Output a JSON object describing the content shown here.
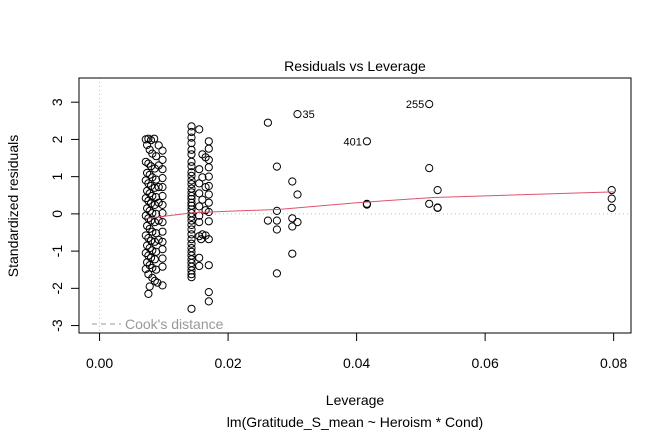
{
  "chart_data": {
    "type": "scatter",
    "title": "Residuals vs Leverage",
    "xlabel": "Leverage",
    "sublabel": "lm(Gratitude_S_mean ~ Heroism * Cond)",
    "ylabel": "Standardized residuals",
    "xlim": [
      -0.0032,
      0.0827
    ],
    "ylim": [
      -3.2,
      3.65
    ],
    "x_ticks": [
      0.0,
      0.02,
      0.04,
      0.06,
      0.08
    ],
    "x_tick_labels": [
      "0.00",
      "0.02",
      "0.04",
      "0.06",
      "0.08"
    ],
    "y_ticks": [
      -3,
      -2,
      -1,
      0,
      1,
      2,
      3
    ],
    "y_tick_labels": [
      "-3",
      "-2",
      "-1",
      "0",
      "1",
      "2",
      "3"
    ],
    "legend": {
      "label": "Cook's distance",
      "placement": "bottom-left"
    },
    "colors": {
      "points": "#000000",
      "smooth": "#df536b",
      "reference": "#bebebe",
      "legend_text": "#999999"
    },
    "points": [
      {
        "x": 0.0072,
        "y": 2.0
      },
      {
        "x": 0.0076,
        "y": 2.02
      },
      {
        "x": 0.008,
        "y": 1.98
      },
      {
        "x": 0.0085,
        "y": 2.02
      },
      {
        "x": 0.0092,
        "y": 1.84
      },
      {
        "x": 0.0098,
        "y": 1.7
      },
      {
        "x": 0.0074,
        "y": 1.85
      },
      {
        "x": 0.0078,
        "y": 1.72
      },
      {
        "x": 0.0082,
        "y": 1.62
      },
      {
        "x": 0.0088,
        "y": 1.55
      },
      {
        "x": 0.0098,
        "y": 1.45
      },
      {
        "x": 0.0072,
        "y": 1.4
      },
      {
        "x": 0.0076,
        "y": 1.35
      },
      {
        "x": 0.008,
        "y": 1.28
      },
      {
        "x": 0.0086,
        "y": 1.22
      },
      {
        "x": 0.0092,
        "y": 1.3
      },
      {
        "x": 0.0098,
        "y": 1.2
      },
      {
        "x": 0.0074,
        "y": 1.1
      },
      {
        "x": 0.0078,
        "y": 1.05
      },
      {
        "x": 0.0082,
        "y": 0.98
      },
      {
        "x": 0.0088,
        "y": 0.92
      },
      {
        "x": 0.0098,
        "y": 0.96
      },
      {
        "x": 0.0072,
        "y": 0.9
      },
      {
        "x": 0.0076,
        "y": 0.82
      },
      {
        "x": 0.008,
        "y": 0.75
      },
      {
        "x": 0.0086,
        "y": 0.7
      },
      {
        "x": 0.0092,
        "y": 0.72
      },
      {
        "x": 0.0098,
        "y": 0.72
      },
      {
        "x": 0.0074,
        "y": 0.62
      },
      {
        "x": 0.0078,
        "y": 0.55
      },
      {
        "x": 0.0082,
        "y": 0.48
      },
      {
        "x": 0.0088,
        "y": 0.45
      },
      {
        "x": 0.0098,
        "y": 0.48
      },
      {
        "x": 0.0072,
        "y": 0.42
      },
      {
        "x": 0.0076,
        "y": 0.35
      },
      {
        "x": 0.008,
        "y": 0.28
      },
      {
        "x": 0.0086,
        "y": 0.24
      },
      {
        "x": 0.0092,
        "y": 0.3
      },
      {
        "x": 0.0098,
        "y": 0.24
      },
      {
        "x": 0.0074,
        "y": 0.15
      },
      {
        "x": 0.0078,
        "y": 0.08
      },
      {
        "x": 0.0082,
        "y": 0.02
      },
      {
        "x": 0.0088,
        "y": 0.0
      },
      {
        "x": 0.0098,
        "y": 0.02
      },
      {
        "x": 0.0072,
        "y": -0.05
      },
      {
        "x": 0.0076,
        "y": -0.12
      },
      {
        "x": 0.008,
        "y": -0.18
      },
      {
        "x": 0.0086,
        "y": -0.22
      },
      {
        "x": 0.0092,
        "y": -0.18
      },
      {
        "x": 0.0098,
        "y": -0.22
      },
      {
        "x": 0.0074,
        "y": -0.32
      },
      {
        "x": 0.0078,
        "y": -0.4
      },
      {
        "x": 0.0082,
        "y": -0.48
      },
      {
        "x": 0.0088,
        "y": -0.52
      },
      {
        "x": 0.0098,
        "y": -0.48
      },
      {
        "x": 0.0072,
        "y": -0.58
      },
      {
        "x": 0.0076,
        "y": -0.65
      },
      {
        "x": 0.008,
        "y": -0.72
      },
      {
        "x": 0.0086,
        "y": -0.75
      },
      {
        "x": 0.0092,
        "y": -0.7
      },
      {
        "x": 0.0098,
        "y": -0.75
      },
      {
        "x": 0.0074,
        "y": -0.85
      },
      {
        "x": 0.0078,
        "y": -0.92
      },
      {
        "x": 0.0082,
        "y": -0.98
      },
      {
        "x": 0.0088,
        "y": -1.02
      },
      {
        "x": 0.0098,
        "y": -0.95
      },
      {
        "x": 0.0072,
        "y": -1.05
      },
      {
        "x": 0.0076,
        "y": -1.12
      },
      {
        "x": 0.008,
        "y": -1.18
      },
      {
        "x": 0.0086,
        "y": -1.22
      },
      {
        "x": 0.0098,
        "y": -1.2
      },
      {
        "x": 0.0074,
        "y": -1.3
      },
      {
        "x": 0.0078,
        "y": -1.38
      },
      {
        "x": 0.0082,
        "y": -1.45
      },
      {
        "x": 0.0088,
        "y": -1.5
      },
      {
        "x": 0.0098,
        "y": -1.42
      },
      {
        "x": 0.0072,
        "y": -1.48
      },
      {
        "x": 0.0076,
        "y": -1.62
      },
      {
        "x": 0.0082,
        "y": -1.72
      },
      {
        "x": 0.0086,
        "y": -1.8
      },
      {
        "x": 0.009,
        "y": -1.85
      },
      {
        "x": 0.0078,
        "y": -1.95
      },
      {
        "x": 0.0098,
        "y": -1.92
      },
      {
        "x": 0.0076,
        "y": -2.15
      },
      {
        "x": 0.0143,
        "y": 2.35
      },
      {
        "x": 0.0143,
        "y": 2.2
      },
      {
        "x": 0.0155,
        "y": 2.27
      },
      {
        "x": 0.0143,
        "y": 2.05
      },
      {
        "x": 0.0143,
        "y": 1.9
      },
      {
        "x": 0.017,
        "y": 1.95
      },
      {
        "x": 0.0143,
        "y": 1.72
      },
      {
        "x": 0.0143,
        "y": 1.6
      },
      {
        "x": 0.016,
        "y": 1.6
      },
      {
        "x": 0.017,
        "y": 1.75
      },
      {
        "x": 0.0165,
        "y": 1.52
      },
      {
        "x": 0.017,
        "y": 1.45
      },
      {
        "x": 0.0143,
        "y": 1.4
      },
      {
        "x": 0.0143,
        "y": 1.28
      },
      {
        "x": 0.0155,
        "y": 1.2
      },
      {
        "x": 0.017,
        "y": 1.25
      },
      {
        "x": 0.0143,
        "y": 1.12
      },
      {
        "x": 0.0143,
        "y": 1.02
      },
      {
        "x": 0.016,
        "y": 0.98
      },
      {
        "x": 0.017,
        "y": 1.0
      },
      {
        "x": 0.0143,
        "y": 0.9
      },
      {
        "x": 0.0143,
        "y": 0.8
      },
      {
        "x": 0.0155,
        "y": 0.82
      },
      {
        "x": 0.0165,
        "y": 0.72
      },
      {
        "x": 0.017,
        "y": 0.75
      },
      {
        "x": 0.0143,
        "y": 0.68
      },
      {
        "x": 0.0143,
        "y": 0.58
      },
      {
        "x": 0.0155,
        "y": 0.55
      },
      {
        "x": 0.017,
        "y": 0.52
      },
      {
        "x": 0.0143,
        "y": 0.48
      },
      {
        "x": 0.0143,
        "y": 0.4
      },
      {
        "x": 0.016,
        "y": 0.38
      },
      {
        "x": 0.017,
        "y": 0.3
      },
      {
        "x": 0.0143,
        "y": 0.3
      },
      {
        "x": 0.0143,
        "y": 0.22
      },
      {
        "x": 0.0155,
        "y": 0.2
      },
      {
        "x": 0.0143,
        "y": 0.12
      },
      {
        "x": 0.0165,
        "y": 0.1
      },
      {
        "x": 0.017,
        "y": 0.05
      },
      {
        "x": 0.0143,
        "y": 0.02
      },
      {
        "x": 0.0155,
        "y": -0.05
      },
      {
        "x": 0.0143,
        "y": -0.08
      },
      {
        "x": 0.017,
        "y": -0.2
      },
      {
        "x": 0.0143,
        "y": -0.18
      },
      {
        "x": 0.0155,
        "y": -0.22
      },
      {
        "x": 0.0143,
        "y": -0.3
      },
      {
        "x": 0.0143,
        "y": -0.42
      },
      {
        "x": 0.016,
        "y": -0.55
      },
      {
        "x": 0.0155,
        "y": -0.6
      },
      {
        "x": 0.0165,
        "y": -0.58
      },
      {
        "x": 0.0143,
        "y": -0.55
      },
      {
        "x": 0.017,
        "y": -0.68
      },
      {
        "x": 0.0158,
        "y": -0.68
      },
      {
        "x": 0.0143,
        "y": -0.68
      },
      {
        "x": 0.0143,
        "y": -0.8
      },
      {
        "x": 0.0143,
        "y": -0.92
      },
      {
        "x": 0.0143,
        "y": -1.02
      },
      {
        "x": 0.0143,
        "y": -1.12
      },
      {
        "x": 0.0143,
        "y": -1.22
      },
      {
        "x": 0.0155,
        "y": -1.18
      },
      {
        "x": 0.0143,
        "y": -1.32
      },
      {
        "x": 0.0143,
        "y": -1.42
      },
      {
        "x": 0.0155,
        "y": -1.4
      },
      {
        "x": 0.017,
        "y": -1.38
      },
      {
        "x": 0.0143,
        "y": -1.52
      },
      {
        "x": 0.0143,
        "y": -1.62
      },
      {
        "x": 0.0143,
        "y": -1.7
      },
      {
        "x": 0.017,
        "y": -2.1
      },
      {
        "x": 0.017,
        "y": -2.35
      },
      {
        "x": 0.0143,
        "y": -2.55
      },
      {
        "x": 0.0262,
        "y": 2.45
      },
      {
        "x": 0.0276,
        "y": 1.27
      },
      {
        "x": 0.0276,
        "y": 0.08
      },
      {
        "x": 0.0262,
        "y": -0.18
      },
      {
        "x": 0.0276,
        "y": -0.18
      },
      {
        "x": 0.0276,
        "y": -0.42
      },
      {
        "x": 0.0276,
        "y": -1.6
      },
      {
        "x": 0.03,
        "y": 0.87
      },
      {
        "x": 0.03,
        "y": -0.12
      },
      {
        "x": 0.03,
        "y": -0.34
      },
      {
        "x": 0.0308,
        "y": 0.52
      },
      {
        "x": 0.0308,
        "y": -0.22
      },
      {
        "x": 0.03,
        "y": -1.07
      },
      {
        "x": 0.0416,
        "y": 0.25
      },
      {
        "x": 0.0416,
        "y": 0.27
      },
      {
        "x": 0.0513,
        "y": 1.23
      },
      {
        "x": 0.0513,
        "y": 0.27
      },
      {
        "x": 0.0526,
        "y": 0.64
      },
      {
        "x": 0.0526,
        "y": 0.16
      },
      {
        "x": 0.0526,
        "y": 0.17
      },
      {
        "x": 0.0797,
        "y": 0.64
      },
      {
        "x": 0.0797,
        "y": 0.41
      },
      {
        "x": 0.0797,
        "y": 0.16
      }
    ],
    "labeled_points": [
      {
        "x": 0.0308,
        "y": 2.68,
        "label": "35",
        "side": "right"
      },
      {
        "x": 0.0416,
        "y": 1.95,
        "label": "401",
        "side": "left"
      },
      {
        "x": 0.0513,
        "y": 2.95,
        "label": "255",
        "side": "left"
      }
    ],
    "smooth_line": [
      {
        "x": 0.0075,
        "y": -0.12
      },
      {
        "x": 0.0145,
        "y": 0.03
      },
      {
        "x": 0.02,
        "y": 0.07
      },
      {
        "x": 0.028,
        "y": 0.12
      },
      {
        "x": 0.04,
        "y": 0.3
      },
      {
        "x": 0.052,
        "y": 0.44
      },
      {
        "x": 0.08,
        "y": 0.59
      }
    ]
  }
}
